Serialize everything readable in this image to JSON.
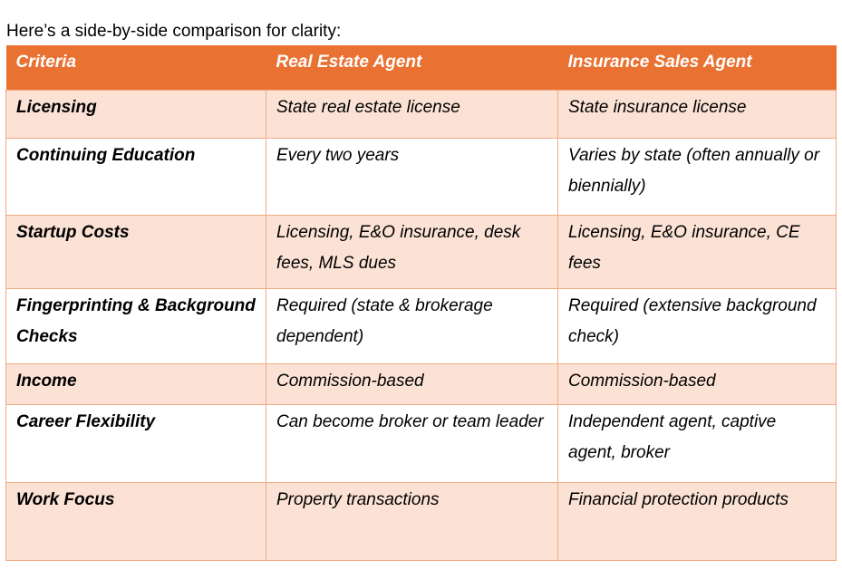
{
  "page": {
    "intro": "Here’s a side-by-side comparison for clarity:"
  },
  "colors": {
    "header_bg": "#E97132",
    "header_text": "#FFFFFF",
    "row_shade_bg": "#FBE2D5",
    "row_plain_bg": "#FFFFFF",
    "border": "#F2AA84",
    "body_text": "#000000"
  },
  "table": {
    "headers": [
      "Criteria",
      "Real Estate Agent",
      "Insurance Sales Agent"
    ],
    "rows": [
      [
        "Licensing",
        "State real estate license",
        "State insurance license"
      ],
      [
        "Continuing Education",
        "Every two years",
        "Varies by state (often annually or biennially)"
      ],
      [
        "Startup Costs",
        "Licensing, E&O insurance, desk fees, MLS dues",
        "Licensing, E&O insurance, CE fees"
      ],
      [
        "Fingerprinting & Background Checks",
        "Required (state & brokerage dependent)",
        "Required (extensive background check)"
      ],
      [
        "Income",
        "Commission-based",
        "Commission-based"
      ],
      [
        "Career Flexibility",
        "Can become broker or team leader",
        "Independent agent, captive agent, broker"
      ],
      [
        "Work Focus",
        "Property transactions",
        "Financial protection products"
      ]
    ]
  }
}
